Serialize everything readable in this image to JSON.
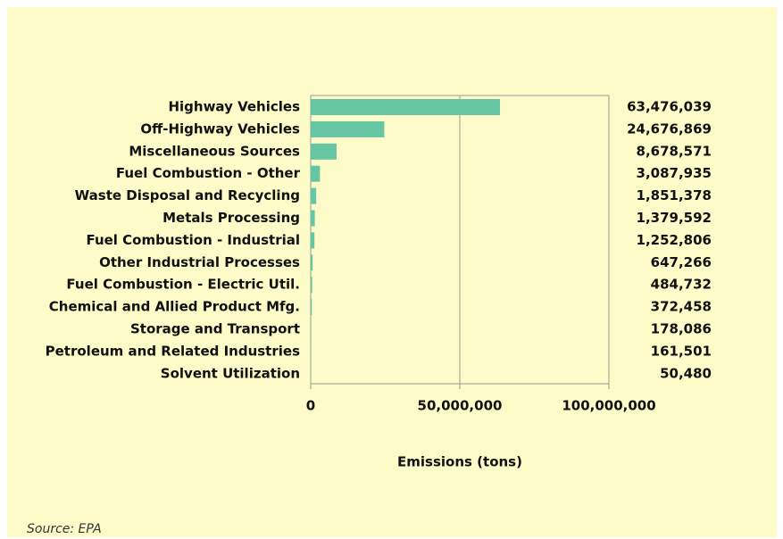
{
  "chart_data": {
    "type": "hbar",
    "categories": [
      "Highway Vehicles",
      "Off-Highway Vehicles",
      "Miscellaneous Sources",
      "Fuel Combustion - Other",
      "Waste Disposal and Recycling",
      "Metals Processing",
      "Fuel Combustion - Industrial",
      "Other Industrial Processes",
      "Fuel Combustion - Electric Util.",
      "Chemical and Allied Product Mfg.",
      "Storage and Transport",
      "Petroleum and Related Industries",
      "Solvent Utilization"
    ],
    "values": [
      63476039,
      24676869,
      8678571,
      3087935,
      1851378,
      1379592,
      1252806,
      647266,
      484732,
      372458,
      178086,
      161501,
      50480
    ],
    "value_labels": [
      "63,476,039",
      "24,676,869",
      "8,678,571",
      "3,087,935",
      "1,851,378",
      "1,379,592",
      "1,252,806",
      "647,266",
      "484,732",
      "372,458",
      "178,086",
      "161,501",
      "50,480"
    ],
    "color": "#66c6a4",
    "xlim": [
      0,
      100000000
    ],
    "xticks": [
      0,
      {
        "value": 50000000,
        "label": "50,000,000"
      },
      {
        "value": 100000000,
        "label": "100,000,000"
      }
    ],
    "grid": true,
    "x_label": "Emissions (tons)",
    "source": "Source: EPA"
  }
}
